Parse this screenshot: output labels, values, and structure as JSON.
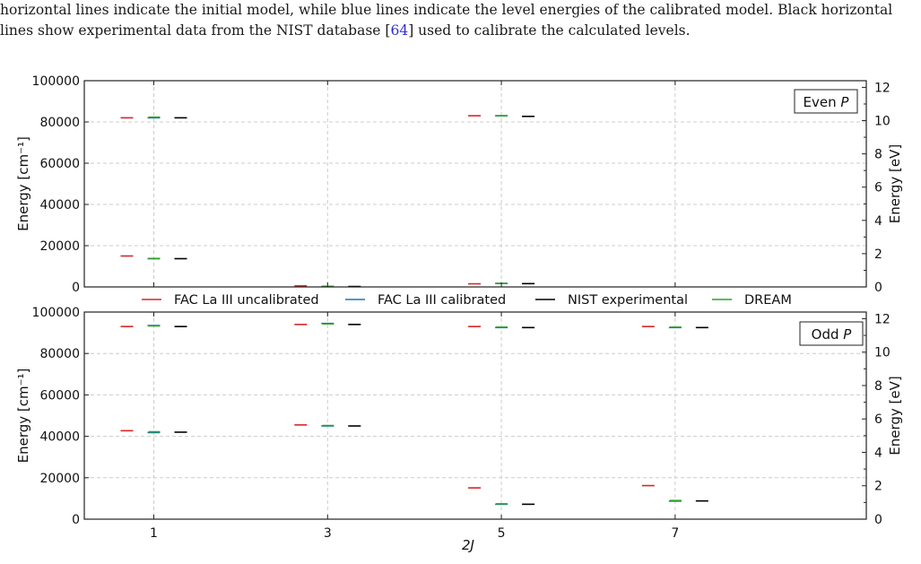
{
  "caption": {
    "line1": "horizontal lines indicate the initial model, while blue lines indicate the level energies of the calibrated model. Black horizontal",
    "line2_pre": "lines show experimental data from the NIST database [",
    "line2_ref": "64",
    "line2_post": "] used to calibrate the calculated levels."
  },
  "legend": [
    {
      "name": "FAC La III uncalibrated",
      "color": "#d62728"
    },
    {
      "name": "FAC La III calibrated",
      "color": "#1f77b4"
    },
    {
      "name": "NIST experimental",
      "color": "#000000"
    },
    {
      "name": "DREAM",
      "color": "#2ca02c"
    }
  ],
  "chart_data": [
    {
      "type": "scatter",
      "panel_label": "Even P",
      "panel_label_main": "Even",
      "panel_label_italic": "P",
      "xlabel": "",
      "ylabel": "Energy [cm⁻¹]",
      "ylabel_right": "Energy [eV]",
      "ylim": [
        0,
        100000
      ],
      "ylim_right": [
        0,
        12.4
      ],
      "xlim": [
        0.2,
        9.2
      ],
      "yticks": [
        "0",
        "20000",
        "40000",
        "60000",
        "80000",
        "100000"
      ],
      "yticks_right": [
        "0",
        "2",
        "4",
        "6",
        "8",
        "10",
        "12"
      ],
      "grid": true,
      "series": [
        {
          "name": "FAC La III uncalibrated",
          "x": [
            1,
            1,
            3,
            5,
            5
          ],
          "y": [
            82000,
            15000,
            500,
            83000,
            1500
          ]
        },
        {
          "name": "FAC La III calibrated",
          "x": [
            1,
            1,
            3,
            5,
            5
          ],
          "y": [
            82000,
            13700,
            200,
            83000,
            1700
          ]
        },
        {
          "name": "NIST experimental",
          "x": [
            1,
            1,
            3,
            5,
            5
          ],
          "y": [
            82000,
            13700,
            200,
            82700,
            1600
          ]
        },
        {
          "name": "DREAM",
          "x": [
            1,
            1,
            3,
            5,
            5
          ],
          "y": [
            82300,
            13800,
            300,
            83000,
            1700
          ]
        }
      ]
    },
    {
      "type": "scatter",
      "panel_label": "Odd P",
      "panel_label_main": "Odd",
      "panel_label_italic": "P",
      "xlabel": "2J",
      "ylabel": "Energy [cm⁻¹]",
      "ylabel_right": "Energy [eV]",
      "ylim": [
        0,
        100000
      ],
      "ylim_right": [
        0,
        12.4
      ],
      "xlim": [
        0.2,
        9.2
      ],
      "xticks": [
        "1",
        "3",
        "5",
        "7"
      ],
      "yticks": [
        "0",
        "20000",
        "40000",
        "60000",
        "80000",
        "100000"
      ],
      "yticks_right": [
        "0",
        "2",
        "4",
        "6",
        "8",
        "10",
        "12"
      ],
      "grid": true,
      "series": [
        {
          "name": "FAC La III uncalibrated",
          "x": [
            1,
            1,
            3,
            3,
            5,
            5,
            7,
            7
          ],
          "y": [
            93000,
            42700,
            94000,
            45500,
            93000,
            15100,
            93000,
            16200
          ]
        },
        {
          "name": "FAC La III calibrated",
          "x": [
            1,
            1,
            3,
            3,
            5,
            5,
            7,
            7
          ],
          "y": [
            93500,
            41800,
            94500,
            45000,
            92500,
            7200,
            92500,
            8700
          ]
        },
        {
          "name": "NIST experimental",
          "x": [
            1,
            1,
            3,
            3,
            5,
            5,
            7,
            7
          ],
          "y": [
            93000,
            42000,
            94000,
            45000,
            92500,
            7200,
            92500,
            8800
          ]
        },
        {
          "name": "DREAM",
          "x": [
            1,
            1,
            3,
            3,
            5,
            5,
            7,
            7
          ],
          "y": [
            93300,
            42200,
            94300,
            45200,
            92700,
            7400,
            92700,
            9000
          ]
        }
      ]
    }
  ]
}
